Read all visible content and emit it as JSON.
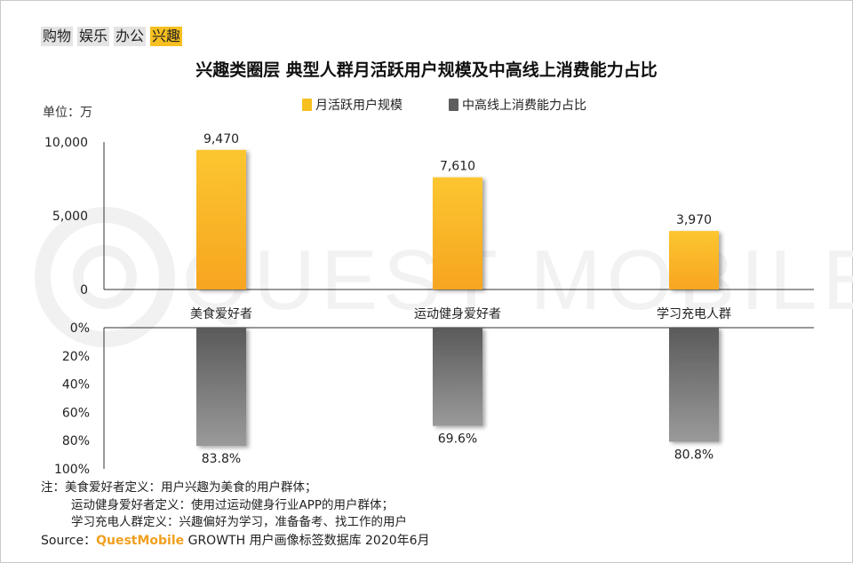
{
  "tags": [
    {
      "label": "购物",
      "active": false
    },
    {
      "label": "娱乐",
      "active": false
    },
    {
      "label": "办公",
      "active": false
    },
    {
      "label": "兴趣",
      "active": true
    }
  ],
  "unit_label": "单位：万",
  "notes": {
    "line1": "注：美食爱好者定义：用户兴趣为美食的用户群体；",
    "line2": "运动健身爱好者定义：使用过运动健身行业APP的用户群体；",
    "line3": "学习充电人群定义：兴趣偏好为学习，准备备考、找工作的用户"
  },
  "source": {
    "prefix": "Source：",
    "brand": "QuestMobile",
    "suffix": " GROWTH 用户画像标签数据库 2020年6月"
  },
  "watermark": "QUEST MOBILE",
  "colors": {
    "bar_top": "#f7c020",
    "bar_bottom": "#6a6a6a",
    "active_tag": "#f7c020"
  },
  "chart_data": {
    "type": "bar",
    "title": "兴趣类圈层 典型人群月活跃用户规模及中高线上消费能力占比",
    "categories": [
      "美食爱好者",
      "运动健身爱好者",
      "学习充电人群"
    ],
    "series": [
      {
        "name": "月活跃用户规模",
        "values": [
          9470,
          7610,
          3970
        ],
        "labels": [
          "9,470",
          "7,610",
          "3,970"
        ],
        "ylim": [
          0,
          10000
        ],
        "ticks": [
          "10,000",
          "5,000",
          "0"
        ],
        "tick_values": [
          10000,
          5000,
          0
        ]
      },
      {
        "name": "中高线上消费能力占比",
        "values": [
          83.8,
          69.6,
          80.8
        ],
        "labels": [
          "83.8%",
          "69.6%",
          "80.8%"
        ],
        "ylim": [
          0,
          100
        ],
        "ticks": [
          "0%",
          "20%",
          "40%",
          "60%",
          "80%",
          "100%"
        ],
        "tick_values": [
          0,
          20,
          40,
          60,
          80,
          100
        ],
        "inverted": true
      }
    ],
    "legend_position": "top"
  }
}
